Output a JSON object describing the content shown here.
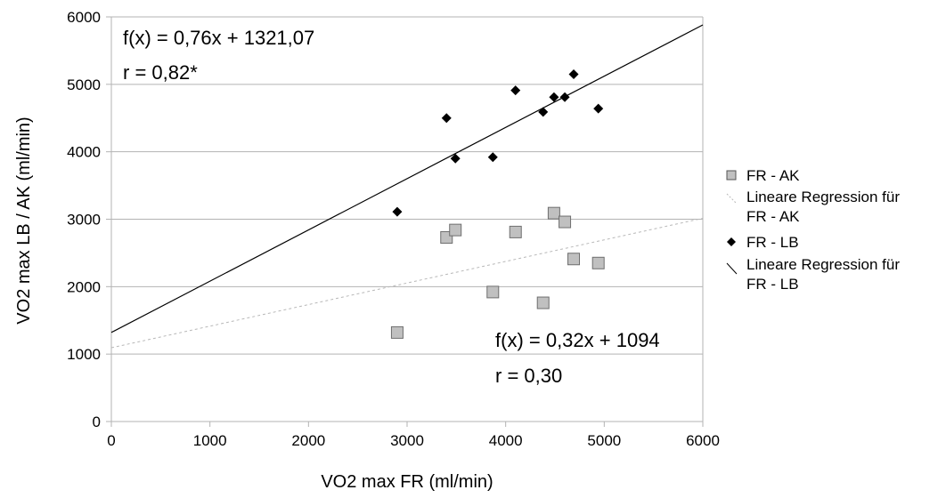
{
  "chart_data": {
    "type": "scatter",
    "xlabel": "VO2 max FR (ml/min)",
    "ylabel": "VO2 max LB / AK (ml/min)",
    "xlim": [
      0,
      6000
    ],
    "ylim": [
      0,
      6000
    ],
    "xticks": [
      "0",
      "1000",
      "2000",
      "3000",
      "4000",
      "5000",
      "6000"
    ],
    "yticks": [
      "0",
      "1000",
      "2000",
      "3000",
      "4000",
      "5000",
      "6000"
    ],
    "grid": "horizontal",
    "legend_position": "right",
    "series": [
      {
        "name": "FR - AK",
        "marker": "square",
        "color": "#c0c0c0",
        "points": [
          [
            2900,
            1320
          ],
          [
            3400,
            2730
          ],
          [
            3490,
            2840
          ],
          [
            3870,
            1920
          ],
          [
            4100,
            2810
          ],
          [
            4380,
            1760
          ],
          [
            4490,
            3090
          ],
          [
            4600,
            2960
          ],
          [
            4690,
            2410
          ],
          [
            4940,
            2350
          ]
        ]
      },
      {
        "name": "FR - LB",
        "marker": "diamond",
        "color": "#000000",
        "points": [
          [
            2900,
            3110
          ],
          [
            3400,
            4500
          ],
          [
            3490,
            3900
          ],
          [
            3870,
            3920
          ],
          [
            4100,
            4910
          ],
          [
            4380,
            4590
          ],
          [
            4490,
            4810
          ],
          [
            4600,
            4810
          ],
          [
            4690,
            5150
          ],
          [
            4940,
            4640
          ]
        ]
      }
    ],
    "regressions": [
      {
        "legend_label_lines": [
          "Lineare Regression für",
          "FR - AK"
        ],
        "slope": 0.32,
        "intercept": 1094,
        "style": "dashed",
        "color": "#b8b8b8",
        "equation": "f(x) = 0,32x + 1094",
        "r": "r = 0,30"
      },
      {
        "legend_label_lines": [
          "Lineare Regression für",
          "FR - LB"
        ],
        "slope": 0.76,
        "intercept": 1321.07,
        "style": "solid",
        "color": "#000000",
        "equation": "f(x) = 0,76x + 1321,07",
        "r": "r = 0,82*"
      }
    ]
  }
}
